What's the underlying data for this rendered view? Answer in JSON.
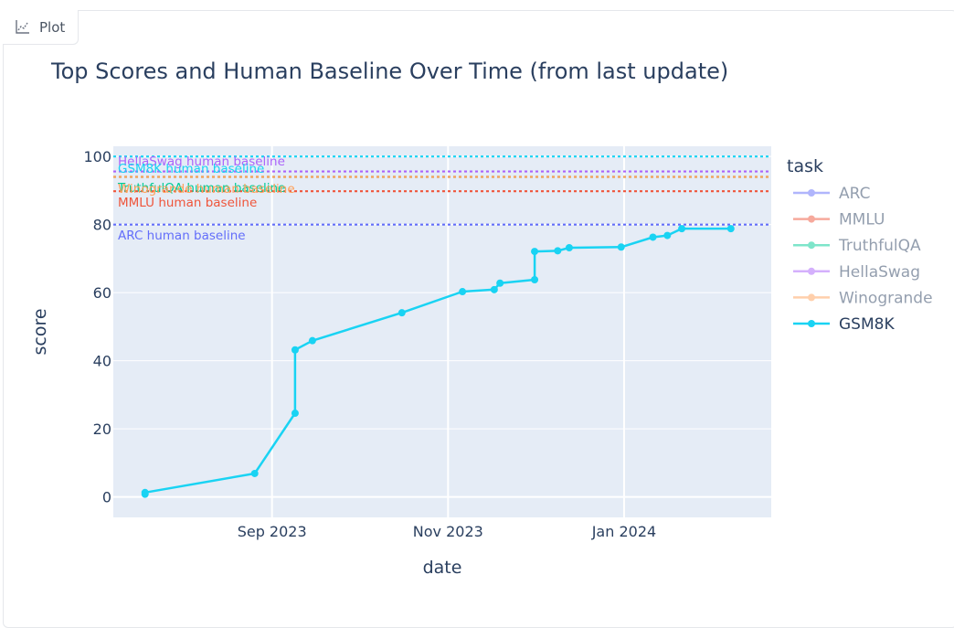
{
  "tab": {
    "label": "Plot",
    "icon": "chart-icon"
  },
  "chart_data": {
    "type": "line",
    "title": "Top Scores and Human Baseline Over Time (from last update)",
    "xlabel": "date",
    "ylabel": "score",
    "x_ticks": [
      {
        "date": "2023-09-01",
        "label": "Sep 2023"
      },
      {
        "date": "2023-11-01",
        "label": "Nov 2023"
      },
      {
        "date": "2024-01-01",
        "label": "Jan 2024"
      }
    ],
    "xlim": [
      "2023-07-08",
      "2024-02-21"
    ],
    "y_ticks": [
      0,
      20,
      40,
      60,
      80,
      100
    ],
    "ylim": [
      -6,
      103
    ],
    "grid": true,
    "legend": {
      "title": "task",
      "placement": "right",
      "entries": [
        {
          "name": "ARC",
          "color": "#636efa",
          "faded": true
        },
        {
          "name": "MMLU",
          "color": "#ef553b",
          "faded": true
        },
        {
          "name": "TruthfulQA",
          "color": "#00cc96",
          "faded": true
        },
        {
          "name": "HellaSwag",
          "color": "#ab63fa",
          "faded": true
        },
        {
          "name": "Winogrande",
          "color": "#ffa15a",
          "faded": true
        },
        {
          "name": "GSM8K",
          "color": "#19d3f3",
          "faded": false
        }
      ]
    },
    "baselines": [
      {
        "label": "HellaSwag human baseline",
        "value": 95.6,
        "color": "#ab63fa"
      },
      {
        "label": "GSM8K human baseline",
        "value": 100,
        "color": "#19d3f3"
      },
      {
        "label": "TruthfulQA human baseline",
        "value": 94,
        "color": "#00cc96"
      },
      {
        "label": "Winogrande human baseline",
        "value": 94,
        "color": "#ffa15a"
      },
      {
        "label": "MMLU human baseline",
        "value": 89.8,
        "color": "#ef553b"
      },
      {
        "label": "ARC human baseline",
        "value": 80,
        "color": "#636efa"
      }
    ],
    "series": [
      {
        "name": "GSM8K",
        "color": "#19d3f3",
        "points": [
          {
            "x": "2023-07-19",
            "y": 0.8
          },
          {
            "x": "2023-07-19",
            "y": 1.3
          },
          {
            "x": "2023-08-26",
            "y": 6.9
          },
          {
            "x": "2023-09-09",
            "y": 24.6
          },
          {
            "x": "2023-09-09",
            "y": 43.2
          },
          {
            "x": "2023-09-15",
            "y": 45.9
          },
          {
            "x": "2023-10-16",
            "y": 54.1
          },
          {
            "x": "2023-11-06",
            "y": 60.3
          },
          {
            "x": "2023-11-17",
            "y": 60.9
          },
          {
            "x": "2023-11-19",
            "y": 62.8
          },
          {
            "x": "2023-12-01",
            "y": 63.8
          },
          {
            "x": "2023-12-01",
            "y": 72.1
          },
          {
            "x": "2023-12-09",
            "y": 72.3
          },
          {
            "x": "2023-12-13",
            "y": 73.2
          },
          {
            "x": "2023-12-31",
            "y": 73.4
          },
          {
            "x": "2024-01-11",
            "y": 76.3
          },
          {
            "x": "2024-01-16",
            "y": 76.8
          },
          {
            "x": "2024-01-21",
            "y": 78.8
          },
          {
            "x": "2024-02-07",
            "y": 78.8
          }
        ]
      }
    ]
  }
}
